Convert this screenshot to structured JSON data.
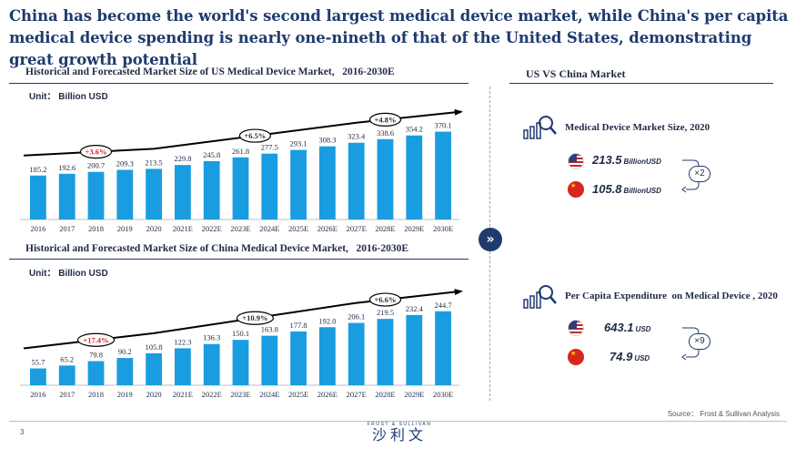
{
  "headline": "China has become the world's second largest medical device market, while China's per capita medical device spending is nearly one-nineth of that of the United States, demonstrating great growth potential",
  "charts": {
    "us_title": "Historical and Forecasted Market Size of US Medical Device Market,   2016-2030E",
    "us_unit": "Unit： Billion USD",
    "cn_title": "Historical and Forecasted Market Size of China Medical Device Market,   2016-2030E",
    "cn_unit": "Unit： Billion USD"
  },
  "chart_data": [
    {
      "type": "bar",
      "title": "Historical and Forecasted Market Size of US Medical Device Market,   2016-2030E",
      "ylabel": "Billion USD",
      "categories": [
        "2016",
        "2017",
        "2018",
        "2019",
        "2020",
        "2021E",
        "2022E",
        "2023E",
        "2024E",
        "2025E",
        "2026E",
        "2027E",
        "2028E",
        "2029E",
        "2030E"
      ],
      "values": [
        185.2,
        192.6,
        200.7,
        209.3,
        213.5,
        229.8,
        245.8,
        261.8,
        277.5,
        293.1,
        308.3,
        323.4,
        338.6,
        354.2,
        370.1
      ],
      "value_labels": [
        "185.2",
        "192.6",
        "200.7",
        "209.3",
        "213.5",
        "229.8",
        "245.8",
        "261.8",
        "277.5",
        "293.1",
        "308.3",
        "323.4",
        "338.6",
        "354.2",
        "370.1"
      ],
      "ylim": [
        0,
        380
      ],
      "bar_color": "#1a9de0",
      "growth_labels": [
        {
          "text": "+3.6%",
          "color": "#d0262d"
        },
        {
          "text": "+6.5%",
          "color": "#1f2a44"
        },
        {
          "text": "+4.8%",
          "color": "#1f2a44"
        }
      ]
    },
    {
      "type": "bar",
      "title": "Historical and Forecasted Market Size of China Medical Device Market,   2016-2030E",
      "ylabel": "Billion USD",
      "categories": [
        "2016",
        "2017",
        "2018",
        "2019",
        "2020",
        "2021E",
        "2022E",
        "2023E",
        "2024E",
        "2025E",
        "2026E",
        "2027E",
        "2028E",
        "2029E",
        "2030E"
      ],
      "values": [
        55.7,
        65.2,
        79.8,
        90.2,
        105.8,
        122.3,
        136.3,
        150.1,
        163.8,
        177.8,
        192.0,
        206.1,
        219.5,
        232.4,
        244.7
      ],
      "value_labels": [
        "55.7",
        "65.2",
        "79.8",
        "90.2",
        "105.8",
        "122.3",
        "136.3",
        "150.1",
        "163.8",
        "177.8",
        "192.0",
        "206.1",
        "219.5",
        "232.4",
        "244.7"
      ],
      "ylim": [
        0,
        250
      ],
      "bar_color": "#1a9de0",
      "growth_labels": [
        {
          "text": "+17.4%",
          "color": "#d0262d"
        },
        {
          "text": "+10.9%",
          "color": "#1f2a44"
        },
        {
          "text": "+6.6%",
          "color": "#1f2a44"
        }
      ]
    }
  ],
  "right_panel": {
    "title": "US VS China Market",
    "metric1": {
      "title": "Medical Device Market Size, 2020",
      "us_value": "213.5",
      "us_unit": "BillionUSD",
      "cn_value": "105.8",
      "cn_unit": "BillionUSD",
      "multiplier": "×2"
    },
    "metric2": {
      "title": "Per Capita Expenditure  on Medical Device , 2020",
      "us_value": "643.1",
      "us_unit": "USD",
      "cn_value": "74.9",
      "cn_unit": "USD",
      "multiplier": "×9"
    },
    "icons": {
      "divider_arrow": "double-chevron-right-icon",
      "metric": "bar-chart-magnifier-icon",
      "us_flag": "us-flag-icon",
      "cn_flag": "china-flag-icon"
    }
  },
  "footer": {
    "source": "Source： Frost & Sullivan Analysis",
    "page": "3",
    "logo_sub": "FROST & SULLIVAN",
    "logo_main": "沙利文"
  }
}
